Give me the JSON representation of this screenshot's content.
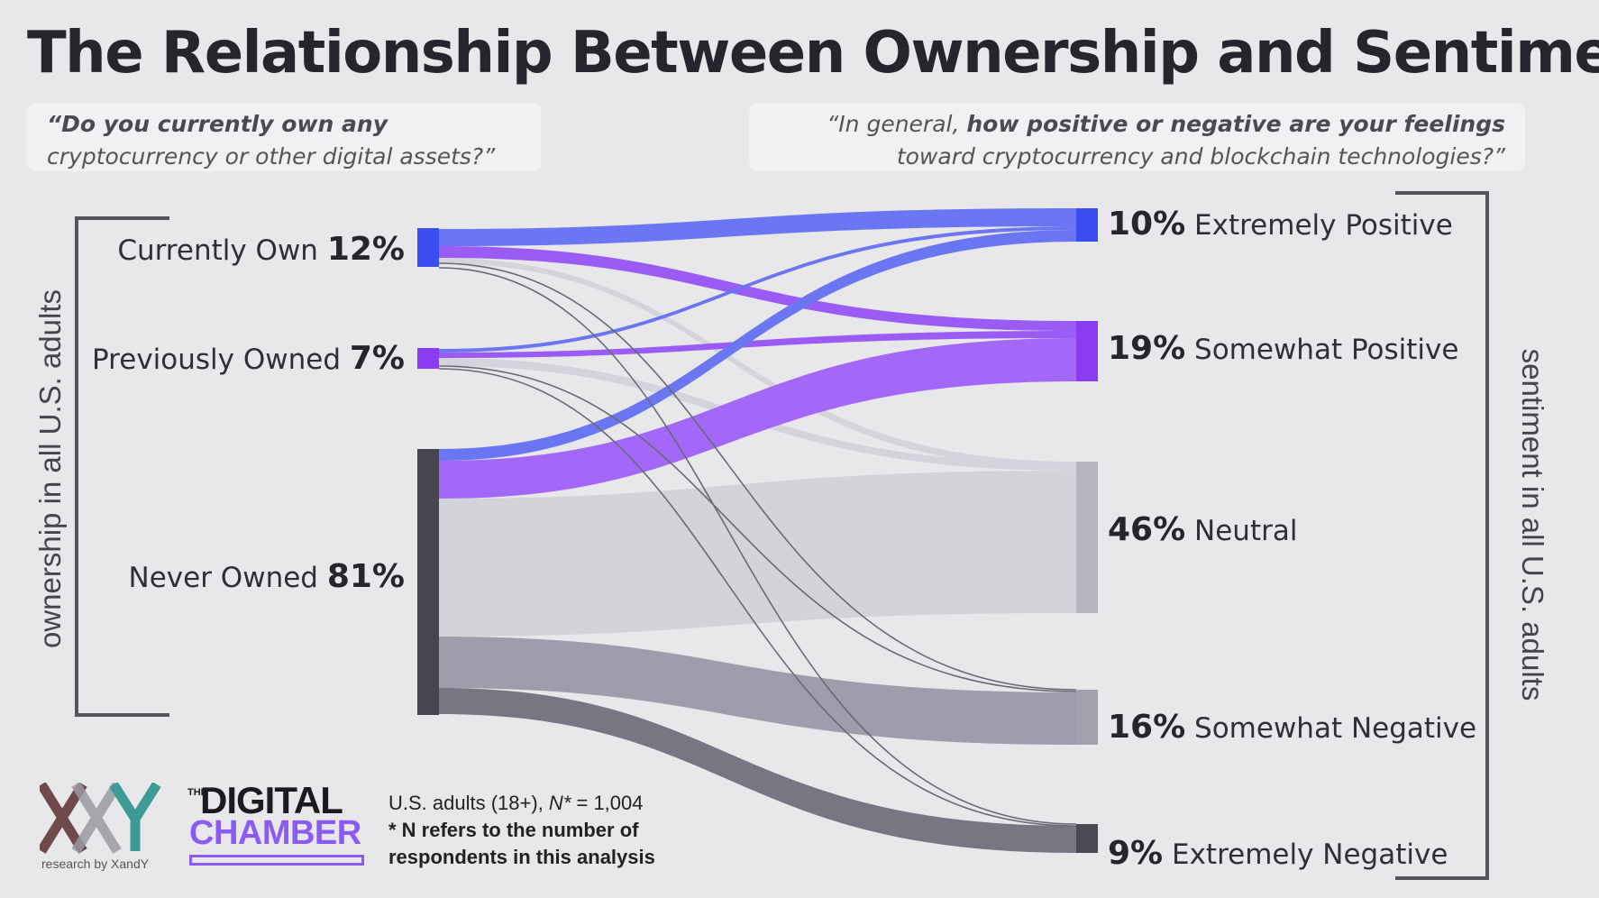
{
  "title": "The Relationship Between Ownership and Sentiment",
  "question_left": {
    "line1": "“Do you currently own any",
    "line2": "cryptocurrency or other digital assets?”"
  },
  "question_right": {
    "line1_pre": "“In general, ",
    "line1_bold": "how positive or negative are your feelings",
    "line2": "toward cryptocurrency and blockchain technologies?”"
  },
  "left_axis_label": "ownership in all U.S. adults",
  "right_axis_label": "sentiment in all U.S. adults",
  "ownership": [
    {
      "label": "Currently Own",
      "pct": "12%",
      "color": "#3b4ef0"
    },
    {
      "label": "Previously Owned",
      "pct": "7%",
      "color": "#8a3df0"
    },
    {
      "label": "Never Owned",
      "pct": "81%",
      "color": "#45454f"
    }
  ],
  "sentiment": [
    {
      "label": "Extremely Positive",
      "pct": "10%",
      "color": "#3b4ef0"
    },
    {
      "label": "Somewhat Positive",
      "pct": "19%",
      "color": "#8a3df0"
    },
    {
      "label": "Neutral",
      "pct": "46%",
      "color": "#b6b6c0"
    },
    {
      "label": "Somewhat Negative",
      "pct": "16%",
      "color": "#a2a2ad"
    },
    {
      "label": "Extremely Negative",
      "pct": "9%",
      "color": "#4a4a52"
    }
  ],
  "note": {
    "line1_pre": "U.S. adults (18+), ",
    "line1_n": "N*",
    "line1_post": " = 1,004",
    "line2": "* N refers to the number of",
    "line3": "respondents in this analysis"
  },
  "logos": {
    "xy_caption": "research by XandY",
    "dc_the": "THE",
    "dc_digital": "DIGITAL",
    "dc_chamber": "CHAMBER"
  }
}
